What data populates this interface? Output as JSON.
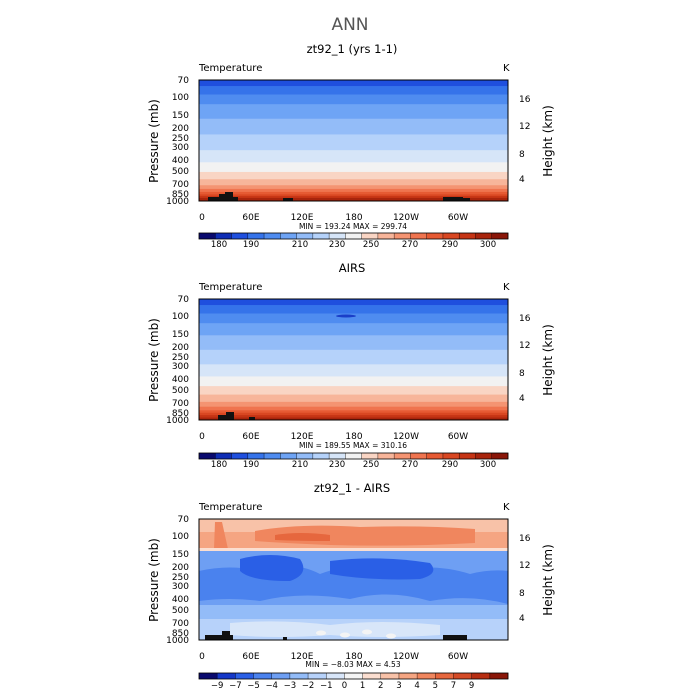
{
  "figure": {
    "title": "ANN"
  },
  "colors": {
    "temp_levels": [
      "#0a0a6e",
      "#0f2db5",
      "#1f4fde",
      "#3573ea",
      "#4f8cf0",
      "#6ea4f5",
      "#93bcf8",
      "#b5d2fa",
      "#d6e5f8",
      "#f2f2f2",
      "#f9d5c4",
      "#f7b59a",
      "#f49472",
      "#ef744f",
      "#e65a33",
      "#d94722",
      "#c53414",
      "#a8240c",
      "#8a1608"
    ],
    "diff_levels": [
      "#0a0a6e",
      "#1437c8",
      "#2a5fe6",
      "#4a82ee",
      "#6e9ff3",
      "#93bcf8",
      "#b7d2fa",
      "#d8e6f9",
      "#f4f4f4",
      "#fbded0",
      "#f8c2a8",
      "#f5a582",
      "#f0865e",
      "#e6673e",
      "#d44a26",
      "#b72e12",
      "#8a1608"
    ]
  },
  "chart_data": [
    {
      "type": "heatmap",
      "title": "zt92_1 (yrs 1-1)",
      "field_label": "Temperature",
      "units": "K",
      "ylabel": "Pressure (mb)",
      "y2label": "Height (km)",
      "yticks": [
        "70",
        "100",
        "150",
        "200",
        "250",
        "300",
        "400",
        "500",
        "700",
        "850",
        "1000"
      ],
      "y2ticks": [
        "16",
        "12",
        "8",
        "4"
      ],
      "xticks": [
        "0",
        "60E",
        "120E",
        "180",
        "120W",
        "60W"
      ],
      "stats_text": "MIN = 193.24   MAX = 299.74",
      "colorbar_labels": [
        "180",
        "190",
        "210",
        "230",
        "250",
        "270",
        "290",
        "300"
      ],
      "palette": "temp",
      "bands": [
        0.05,
        0.12,
        0.2,
        0.32,
        0.45,
        0.58,
        0.68,
        0.76,
        0.82,
        0.87,
        0.9,
        0.925,
        0.945,
        0.96,
        0.975
      ]
    },
    {
      "type": "heatmap",
      "title": "AIRS",
      "field_label": "Temperature",
      "units": "K",
      "ylabel": "Pressure (mb)",
      "y2label": "Height (km)",
      "yticks": [
        "70",
        "100",
        "150",
        "200",
        "250",
        "300",
        "400",
        "500",
        "700",
        "850",
        "1000"
      ],
      "y2ticks": [
        "16",
        "12",
        "8",
        "4"
      ],
      "xticks": [
        "0",
        "60E",
        "120E",
        "180",
        "120W",
        "60W"
      ],
      "stats_text": "MIN = 189.55   MAX = 310.16",
      "colorbar_labels": [
        "180",
        "190",
        "210",
        "230",
        "250",
        "270",
        "290",
        "300"
      ],
      "palette": "temp",
      "bands": [
        0.05,
        0.12,
        0.2,
        0.3,
        0.42,
        0.54,
        0.64,
        0.72,
        0.79,
        0.85,
        0.89,
        0.92,
        0.94,
        0.96,
        0.98
      ]
    },
    {
      "type": "heatmap",
      "title": "zt92_1 - AIRS",
      "field_label": "Temperature",
      "units": "K",
      "ylabel": "Pressure (mb)",
      "y2label": "Height (km)",
      "yticks": [
        "70",
        "100",
        "150",
        "200",
        "250",
        "300",
        "400",
        "500",
        "700",
        "850",
        "1000"
      ],
      "y2ticks": [
        "16",
        "12",
        "8",
        "4"
      ],
      "xticks": [
        "0",
        "60E",
        "120E",
        "180",
        "120W",
        "60W"
      ],
      "stats_text": "MIN = −8.03   MAX =   4.53",
      "colorbar_labels": [
        "−9",
        "−7",
        "−5",
        "−4",
        "−3",
        "−2",
        "−1",
        "0",
        "1",
        "2",
        "3",
        "4",
        "5",
        "7",
        "9"
      ],
      "palette": "diff",
      "bands": []
    }
  ]
}
